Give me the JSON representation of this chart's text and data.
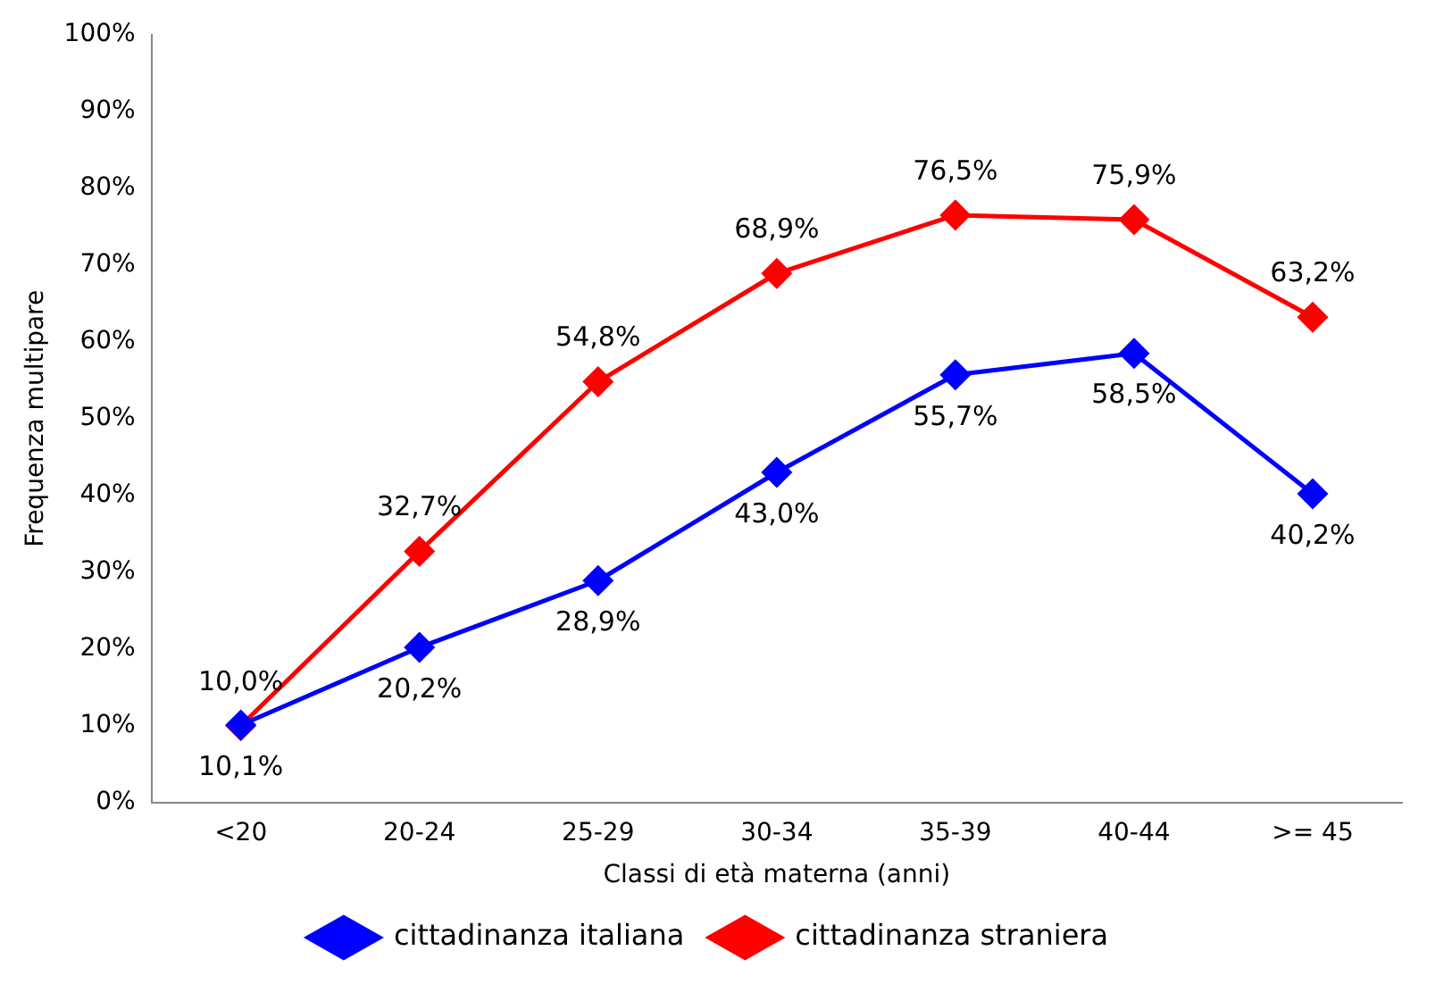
{
  "chart_data": {
    "type": "line",
    "xlabel": "Classi di età materna (anni)",
    "ylabel": "Frequenza multipare",
    "categories": [
      "<20",
      "20-24",
      "25-29",
      "30-34",
      "35-39",
      "40-44",
      ">= 45"
    ],
    "series": [
      {
        "name": "cittadinanza italiana",
        "color": "#0000ff",
        "values": [
          10.1,
          20.2,
          28.9,
          43.0,
          55.7,
          58.5,
          40.2
        ],
        "value_labels": [
          "10,1%",
          "20,2%",
          "28,9%",
          "43,0%",
          "55,7%",
          "58,5%",
          "40,2%"
        ]
      },
      {
        "name": "cittadinanza straniera",
        "color": "#ff0000",
        "values": [
          10.0,
          32.7,
          54.8,
          68.9,
          76.5,
          75.9,
          63.2
        ],
        "value_labels": [
          "10,0%",
          "32,7%",
          "54,8%",
          "68,9%",
          "76,5%",
          "75,9%",
          "63,2%"
        ]
      }
    ],
    "ylim": [
      0,
      100
    ],
    "yticks": [
      {
        "value": 0,
        "label": "0%"
      },
      {
        "value": 10,
        "label": "10%"
      },
      {
        "value": 20,
        "label": "20%"
      },
      {
        "value": 30,
        "label": "30%"
      },
      {
        "value": 40,
        "label": "40%"
      },
      {
        "value": 50,
        "label": "50%"
      },
      {
        "value": 60,
        "label": "60%"
      },
      {
        "value": 70,
        "label": "70%"
      },
      {
        "value": 80,
        "label": "80%"
      },
      {
        "value": 90,
        "label": "90%"
      },
      {
        "value": 100,
        "label": "100%"
      }
    ],
    "grid": false,
    "legend": "bottom",
    "marker": "diamond",
    "line_style": "solid"
  }
}
